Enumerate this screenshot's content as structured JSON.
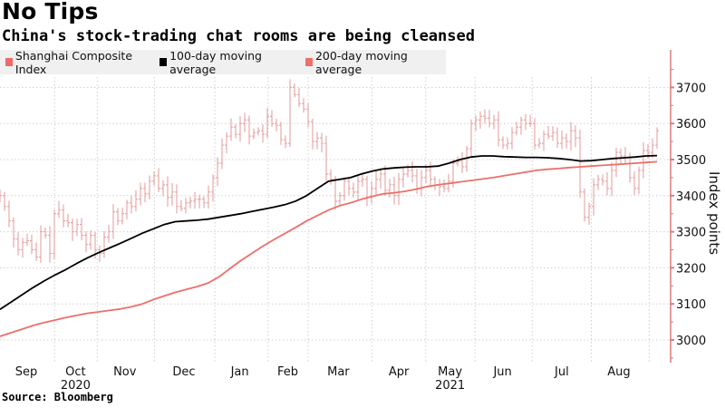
{
  "title": "No Tips",
  "subtitle": "China's stock-trading chat rooms are being cleansed",
  "source": "Source: Bloomberg",
  "colors": {
    "price": "#e39a9a",
    "ma100": "#000000",
    "ma200": "#ec6f69",
    "axis": "#e07b7b",
    "grid": "#cfcfcf",
    "legend_bg": "#f0f0f0"
  },
  "legend": [
    {
      "label": "Shanghai Composite Index",
      "color": "#ef6a6a"
    },
    {
      "label": "100-day moving average",
      "color": "#000000"
    },
    {
      "label": "200-day moving average",
      "color": "#ec6f69"
    }
  ],
  "chart_data": {
    "type": "line",
    "title": "No Tips",
    "subtitle": "China's stock-trading chat rooms are being cleansed",
    "ylabel": "Index points",
    "xlabel": "",
    "ylim": [
      2950,
      3750
    ],
    "yticks": [
      3000,
      3100,
      3200,
      3300,
      3400,
      3500,
      3600,
      3700
    ],
    "grid": true,
    "legend_position": "top-left",
    "x_range_months": [
      "2020-08-24",
      "2021-08-27"
    ],
    "month_labels": [
      {
        "label": "Sep",
        "pos": 0.04
      },
      {
        "label": "Oct",
        "pos": 0.115
      },
      {
        "label": "Nov",
        "pos": 0.19
      },
      {
        "label": "Dec",
        "pos": 0.28
      },
      {
        "label": "Jan",
        "pos": 0.365
      },
      {
        "label": "Feb",
        "pos": 0.438
      },
      {
        "label": "Mar",
        "pos": 0.515
      },
      {
        "label": "Apr",
        "pos": 0.607
      },
      {
        "label": "May",
        "pos": 0.685
      },
      {
        "label": "Jun",
        "pos": 0.765
      },
      {
        "label": "Jul",
        "pos": 0.855
      },
      {
        "label": "Aug",
        "pos": 0.942
      }
    ],
    "month_boundaries": [
      0.083,
      0.148,
      0.235,
      0.327,
      0.408,
      0.469,
      0.566,
      0.648,
      0.723,
      0.81,
      0.9,
      0.988
    ],
    "year_labels": [
      {
        "label": "2020",
        "pos": 0.115
      },
      {
        "label": "2021",
        "pos": 0.685
      }
    ],
    "series": [
      {
        "name": "Shanghai Composite Index",
        "kind": "ohlc-bars",
        "values": [
          3400,
          3370,
          3330,
          3280,
          3250,
          3270,
          3275,
          3250,
          3230,
          3300,
          3290,
          3240,
          3350,
          3360,
          3330,
          3325,
          3300,
          3320,
          3290,
          3265,
          3290,
          3250,
          3240,
          3285,
          3300,
          3355,
          3330,
          3350,
          3380,
          3370,
          3390,
          3420,
          3405,
          3440,
          3455,
          3420,
          3430,
          3395,
          3410,
          3370,
          3365,
          3380,
          3385,
          3390,
          3390,
          3380,
          3410,
          3450,
          3490,
          3540,
          3565,
          3590,
          3570,
          3600,
          3610,
          3565,
          3575,
          3580,
          3570,
          3620,
          3600,
          3595,
          3555,
          3545,
          3700,
          3680,
          3655,
          3640,
          3605,
          3550,
          3560,
          3545,
          3460,
          3445,
          3385,
          3400,
          3440,
          3420,
          3410,
          3440,
          3445,
          3395,
          3420,
          3445,
          3460,
          3415,
          3430,
          3400,
          3445,
          3460,
          3470,
          3455,
          3420,
          3450,
          3470,
          3445,
          3430,
          3425,
          3420,
          3440,
          3490,
          3495,
          3480,
          3530,
          3600,
          3610,
          3620,
          3615,
          3600,
          3610,
          3555,
          3540,
          3545,
          3575,
          3590,
          3610,
          3600,
          3600,
          3540,
          3545,
          3570,
          3565,
          3575,
          3545,
          3560,
          3550,
          3580,
          3560,
          3410,
          3340,
          3370,
          3430,
          3445,
          3440,
          3420,
          3470,
          3520,
          3510,
          3505,
          3450,
          3420,
          3470,
          3525,
          3520,
          3540,
          3580
        ]
      },
      {
        "name": "100-day moving average",
        "kind": "line",
        "values": [
          3085,
          3105,
          3125,
          3145,
          3163,
          3180,
          3195,
          3212,
          3228,
          3242,
          3255,
          3268,
          3282,
          3296,
          3308,
          3320,
          3328,
          3330,
          3332,
          3335,
          3340,
          3345,
          3350,
          3356,
          3362,
          3368,
          3375,
          3385,
          3400,
          3420,
          3440,
          3445,
          3450,
          3460,
          3468,
          3474,
          3477,
          3479,
          3480,
          3480,
          3482,
          3490,
          3500,
          3507,
          3510,
          3510,
          3508,
          3507,
          3506,
          3506,
          3505,
          3503,
          3500,
          3496,
          3497,
          3500,
          3503,
          3505,
          3507,
          3510,
          3511
        ]
      },
      {
        "name": "200-day moving average",
        "kind": "line",
        "values": [
          3010,
          3020,
          3030,
          3040,
          3048,
          3055,
          3062,
          3068,
          3074,
          3078,
          3082,
          3086,
          3092,
          3100,
          3112,
          3122,
          3132,
          3140,
          3148,
          3158,
          3175,
          3198,
          3220,
          3240,
          3260,
          3278,
          3295,
          3312,
          3330,
          3345,
          3360,
          3372,
          3380,
          3390,
          3398,
          3405,
          3408,
          3412,
          3418,
          3425,
          3430,
          3434,
          3438,
          3442,
          3446,
          3450,
          3455,
          3460,
          3465,
          3470,
          3473,
          3475,
          3478,
          3480,
          3482,
          3484,
          3486,
          3488,
          3490,
          3492,
          3494
        ]
      }
    ]
  }
}
